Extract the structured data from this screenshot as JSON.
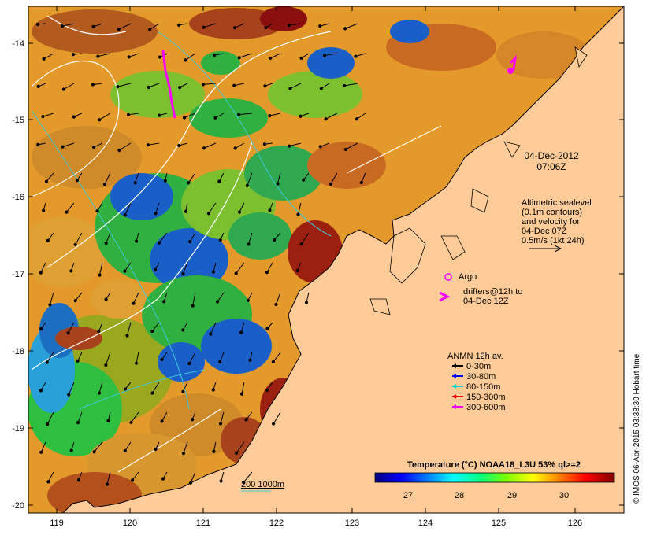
{
  "map": {
    "date_line1": "04-Dec-2012",
    "date_line2": "07:06Z",
    "lon_ticks": [
      "119",
      "120",
      "121",
      "122",
      "123",
      "124",
      "125",
      "126"
    ],
    "lat_ticks": [
      "-14",
      "-15",
      "-16",
      "-17",
      "-18",
      "-19",
      "-20"
    ],
    "credit": "© IMOS 06-Apr-2015 03:38:30 Hobart time",
    "colors": {
      "land": "#ffcc99",
      "coast": "#000000",
      "contour": "#ffffff",
      "isobath": "#40c8d8"
    }
  },
  "legend": {
    "altimetry_lines": [
      "Altimetric sealevel",
      "(0.1m contours)",
      "and velocity for",
      "04-Dec 07Z",
      "0.5m/s (1kt 24h)"
    ],
    "argo_label": "Argo",
    "drifters_line1": "drifters@12h to",
    "drifters_line2": "04-Dec 12Z",
    "anmn_title": "ANMN 12h av.",
    "anmn_items": [
      {
        "label": "0-30m",
        "color": "#000000"
      },
      {
        "label": "30-80m",
        "color": "#0000ff"
      },
      {
        "label": "80-150m",
        "color": "#00d0d0"
      },
      {
        "label": "150-300m",
        "color": "#ff0000"
      },
      {
        "label": "300-600m",
        "color": "#ff00ff"
      }
    ],
    "isobath_label": "200  1000m",
    "argo_color": "#ff00ff",
    "drifter_color": "#ff00ff"
  },
  "colorbar": {
    "title": "Temperature (°C) NOAA18_L3U 53% ql>=2",
    "ticks": [
      "27",
      "28",
      "29",
      "30"
    ],
    "colors": [
      "#00007f",
      "#0000ff",
      "#007fff",
      "#00ffff",
      "#00ff7f",
      "#7fff00",
      "#ffff00",
      "#ff7f00",
      "#ff0000",
      "#7f0000"
    ]
  }
}
